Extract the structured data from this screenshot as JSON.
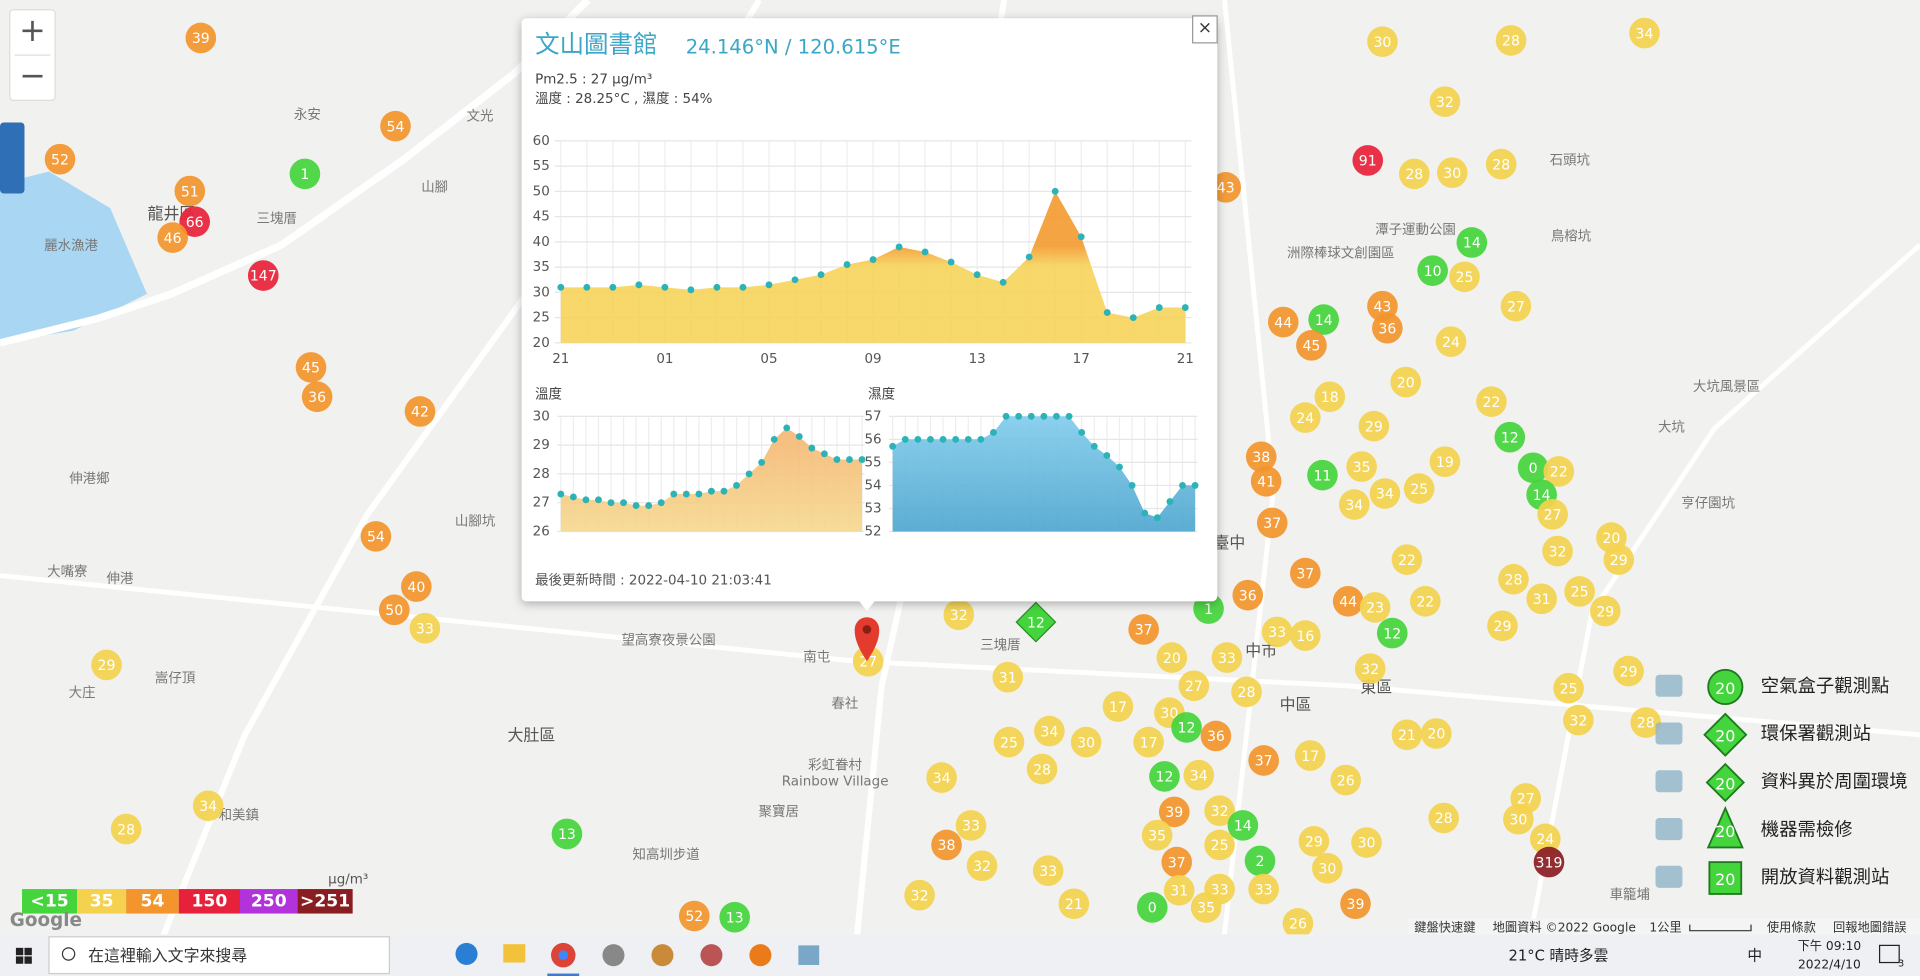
{
  "map": {
    "zoom_in": "+",
    "zoom_out": "−",
    "markers": [
      39,
      52,
      54,
      1,
      51,
      66,
      46,
      147,
      45,
      36,
      42,
      54,
      40,
      50,
      33,
      29,
      34,
      28,
      13,
      52,
      13,
      30,
      28,
      34,
      32,
      91,
      28,
      30,
      28,
      43,
      14,
      10,
      25,
      27,
      43,
      44,
      14,
      36,
      45,
      24,
      20,
      18,
      22,
      24,
      29,
      12,
      19,
      0,
      22,
      35,
      11,
      38,
      41,
      34,
      34,
      25,
      14,
      37,
      27,
      20,
      32,
      29,
      22,
      37,
      28,
      36,
      44,
      23,
      22,
      31,
      25,
      29,
      12,
      29,
      16,
      33,
      37,
      1,
      32,
      33,
      20,
      32,
      27,
      28,
      31,
      29,
      25,
      32,
      28,
      21,
      20,
      17,
      30,
      12,
      36,
      17,
      30,
      25,
      34,
      28,
      37,
      17,
      26,
      12,
      34,
      34,
      39,
      32,
      14,
      28,
      27,
      30,
      38,
      33,
      32,
      33,
      25,
      29,
      35,
      24,
      319,
      37,
      2,
      30,
      30,
      33,
      33,
      31,
      21,
      0,
      35,
      39,
      26,
      32,
      27
    ],
    "diamond_marker": 12,
    "labels": [
      "永安",
      "文光",
      "山腳",
      "三塊厝",
      "龍井區",
      "麗水漁港",
      "伸港鄉",
      "伸港",
      "大嘴寮",
      "嵩仔頂",
      "大庄",
      "山腳坑",
      "大肚區",
      "望高寮夜景公園",
      "春社",
      "彩虹眷村",
      "Rainbow Village",
      "聚寶居",
      "知高圳步道",
      "南屯",
      "三塊厝",
      "中區",
      "東區",
      "臺中",
      "中市",
      "大坑風景區",
      "大坑",
      "亨仔園坑",
      "石頭坑",
      "鳥榕坑",
      "潭子運動公園",
      "洲際棒球文創園區",
      "車籠埔",
      "和美鎮"
    ],
    "attribution": {
      "google": "Google",
      "shortcuts": "鍵盤快速鍵",
      "map_data": "地圖資料 ©2022 Google",
      "scale": "1公里",
      "terms": "使用條款",
      "report": "回報地圖錯誤"
    }
  },
  "scale_legend": {
    "unit": "μg/m³",
    "items": [
      {
        "value": 15,
        "label": "<15",
        "color": "#44d43c"
      },
      {
        "value": 35,
        "color": "#f4d24e"
      },
      {
        "value": 54,
        "color": "#f3952c"
      },
      {
        "value": 150,
        "color": "#e8213a"
      },
      {
        "value": 250,
        "color": "#b233dc"
      },
      {
        "value": 251,
        "label": ">251",
        "color": "#8a1d22"
      }
    ]
  },
  "type_legend": [
    {
      "label": "空氣盒子觀測點",
      "value": 20
    },
    {
      "label": "環保署觀測站",
      "value": 20
    },
    {
      "label": "資料異於周圍環境",
      "value": 20
    },
    {
      "label": "機器需檢修",
      "value": 20
    },
    {
      "label": "開放資料觀測站",
      "value": 20
    }
  ],
  "popup": {
    "close": "×",
    "title": "文山圖書館",
    "coords": "24.146°N / 120.615°E",
    "pm25": "Pm2.5 : 27 μg/m³",
    "temp_humidity": "溫度 : 28.25°C , 濕度 : 54%",
    "updated": "最後更新時間 : 2022-04-10 21:03:41",
    "charts": [
      {
        "type": "area",
        "title": "Pm2.5",
        "categories": [
          "21",
          null,
          null,
          null,
          "01",
          null,
          null,
          null,
          "05",
          null,
          null,
          null,
          "09",
          null,
          null,
          null,
          "13",
          null,
          null,
          null,
          "17",
          null,
          null,
          null,
          "21"
        ],
        "values": [
          31,
          31,
          31,
          31.5,
          31,
          30.5,
          31,
          31,
          31.5,
          32.5,
          33.5,
          35.5,
          36.5,
          39,
          38,
          36,
          33.5,
          32,
          37,
          50,
          41,
          26,
          25,
          27,
          27
        ],
        "ylim": [
          20,
          60
        ],
        "yticks": [
          20,
          25,
          30,
          35,
          40,
          45,
          50,
          55,
          60
        ],
        "color": "#2bb3b8",
        "fill": [
          "#f39a2e",
          "#f6d35a"
        ],
        "grid": true
      },
      {
        "type": "area",
        "title": "溫度",
        "values": [
          27.3,
          27.2,
          27.1,
          27.1,
          27,
          27,
          26.9,
          26.9,
          27,
          27.3,
          27.3,
          27.3,
          27.4,
          27.4,
          27.6,
          28,
          28.4,
          29.2,
          29.6,
          29.3,
          28.9,
          28.7,
          28.5,
          28.5,
          28.5
        ],
        "ylim": [
          26,
          30
        ],
        "yticks": [
          26,
          27,
          28,
          29,
          30
        ],
        "color": "#2bb3b8",
        "fill": [
          "#f4b06c",
          "#f6d88e"
        ],
        "grid": true
      },
      {
        "type": "area",
        "title": "濕度",
        "values": [
          55.7,
          56,
          56,
          56,
          56,
          56,
          56,
          56,
          56.3,
          57,
          57,
          57,
          57,
          57,
          57,
          56.3,
          55.7,
          55.3,
          54.8,
          54,
          52.8,
          52.6,
          53.3,
          54,
          54
        ],
        "ylim": [
          52,
          57
        ],
        "yticks": [
          52,
          53,
          54,
          55,
          56,
          57
        ],
        "color": "#2bb3b8",
        "fill": [
          "#7fcbeb",
          "#4aa4cf"
        ],
        "grid": true
      }
    ]
  },
  "taskbar": {
    "search": "在這裡輸入文字來搜尋",
    "weather": "21°C 晴時多雲",
    "ime": "中",
    "time": "下午 09:10",
    "date": "2022/4/10",
    "notifications": 3
  }
}
